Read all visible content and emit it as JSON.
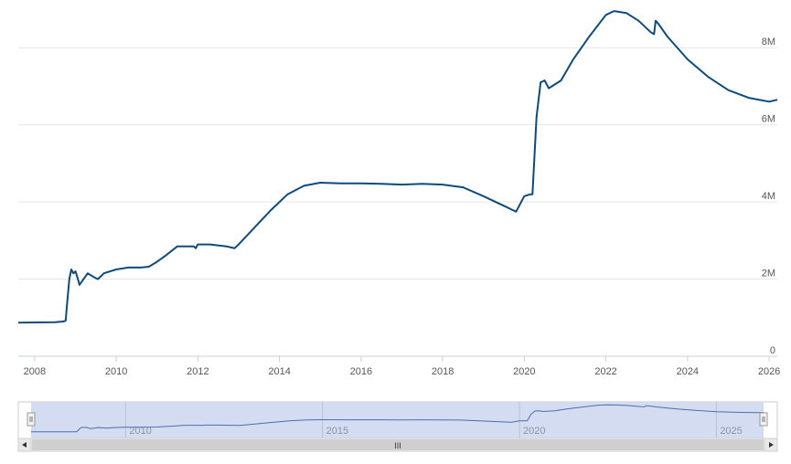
{
  "chart_data": {
    "type": "line",
    "title": "",
    "xlabel": "",
    "ylabel": "",
    "grid": true,
    "xlim": [
      2007.6,
      2026.2
    ],
    "ylim": [
      0,
      9000000
    ],
    "x_ticks": [
      "2008",
      "2010",
      "2012",
      "2014",
      "2016",
      "2018",
      "2020",
      "2022",
      "2024",
      "2026"
    ],
    "y_ticks": [
      "0",
      "2M",
      "4M",
      "6M",
      "8M"
    ],
    "series": [
      {
        "name": "",
        "color": "#0f4a7c",
        "x": [
          2007.6,
          2008.5,
          2008.7,
          2008.76,
          2008.8,
          2008.85,
          2008.9,
          2008.95,
          2009.0,
          2009.06,
          2009.1,
          2009.2,
          2009.3,
          2009.45,
          2009.55,
          2009.7,
          2010.0,
          2010.3,
          2010.6,
          2010.8,
          2011.0,
          2011.2,
          2011.5,
          2011.9,
          2011.95,
          2012.0,
          2012.3,
          2012.7,
          2012.9,
          2013.0,
          2013.4,
          2013.8,
          2014.2,
          2014.6,
          2015.0,
          2015.5,
          2016.0,
          2016.5,
          2017.0,
          2017.5,
          2018.0,
          2018.5,
          2019.0,
          2019.5,
          2019.7,
          2019.8,
          2020.0,
          2020.15,
          2020.2,
          2020.3,
          2020.4,
          2020.5,
          2020.6,
          2020.9,
          2021.2,
          2021.6,
          2022.0,
          2022.2,
          2022.5,
          2022.8,
          2023.1,
          2023.18,
          2023.22,
          2023.3,
          2023.5,
          2024.0,
          2024.5,
          2025.0,
          2025.5,
          2026.0,
          2026.2
        ],
        "y": [
          870000,
          880000,
          900000,
          920000,
          1400000,
          2000000,
          2250000,
          2150000,
          2200000,
          2000000,
          1850000,
          2000000,
          2150000,
          2050000,
          2000000,
          2150000,
          2250000,
          2300000,
          2300000,
          2320000,
          2450000,
          2600000,
          2850000,
          2850000,
          2800000,
          2900000,
          2900000,
          2850000,
          2800000,
          2900000,
          3350000,
          3800000,
          4200000,
          4420000,
          4500000,
          4480000,
          4480000,
          4470000,
          4450000,
          4470000,
          4450000,
          4380000,
          4150000,
          3900000,
          3800000,
          3750000,
          4150000,
          4200000,
          4200000,
          6200000,
          7100000,
          7150000,
          6950000,
          7150000,
          7700000,
          8300000,
          8850000,
          8950000,
          8900000,
          8700000,
          8400000,
          8350000,
          8700000,
          8600000,
          8300000,
          7700000,
          7250000,
          6900000,
          6700000,
          6600000,
          6650000
        ]
      }
    ]
  },
  "navigator": {
    "labels": [
      "2010",
      "2015",
      "2020",
      "2025"
    ],
    "scrollbar_grip": "III",
    "left_arrow_icon": "triangle-left",
    "right_arrow_icon": "triangle-right"
  }
}
